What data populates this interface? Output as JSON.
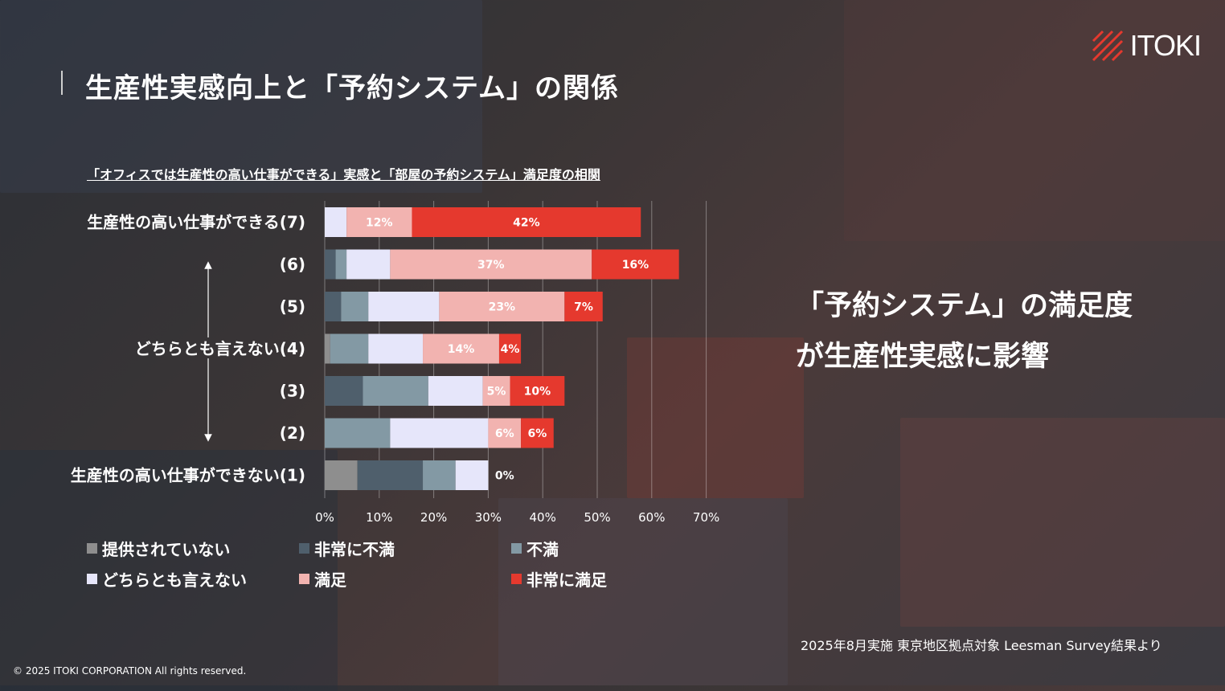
{
  "page": {
    "title": "生産性実感向上と「予約システム」の関係",
    "logo_text": "ITOKI",
    "headline_line1": "「予約システム」の満足度",
    "headline_line2": "が生産性実感に影響",
    "source": "2025年8月実施 東京地区拠点対象 Leesman Survey結果より",
    "copyright": "© 2025 ITOKI CORPORATION All rights reserved."
  },
  "legend": [
    {
      "label": "提供されていない",
      "color": "#8e8e8e"
    },
    {
      "label": "非常に不満",
      "color": "#4f5f6c"
    },
    {
      "label": "不満",
      "color": "#8399a4"
    },
    {
      "label": "どちらとも言えない",
      "color": "#e6e6fa"
    },
    {
      "label": "満足",
      "color": "#f2b3b0"
    },
    {
      "label": "非常に満足",
      "color": "#e5392e"
    }
  ],
  "chart_data": {
    "type": "bar",
    "orientation": "horizontal",
    "stacked": true,
    "title": "「オフィスでは生産性の高い仕事ができる」実感と「部屋の予約システム」満足度の相関",
    "categories": [
      "生産性の高い仕事ができる(7)",
      "(6)",
      "(5)",
      "どちらとも言えない(4)",
      "(3)",
      "(2)",
      "生産性の高い仕事ができない(1)"
    ],
    "series": [
      {
        "name": "提供されていない",
        "values": [
          0,
          0,
          0,
          1,
          0,
          0,
          6
        ]
      },
      {
        "name": "非常に不満",
        "values": [
          0,
          2,
          3,
          0,
          7,
          0,
          12
        ]
      },
      {
        "name": "不満",
        "values": [
          0,
          2,
          5,
          7,
          12,
          12,
          6
        ]
      },
      {
        "name": "どちらとも言えない",
        "values": [
          4,
          8,
          13,
          10,
          10,
          18,
          6
        ]
      },
      {
        "name": "満足",
        "values": [
          12,
          37,
          23,
          14,
          5,
          6,
          0
        ]
      },
      {
        "name": "非常に満足",
        "values": [
          42,
          16,
          7,
          4,
          10,
          6,
          0
        ]
      }
    ],
    "data_labels": [
      {
        "row": 0,
        "series": 4,
        "text": "12%"
      },
      {
        "row": 0,
        "series": 5,
        "text": "42%"
      },
      {
        "row": 1,
        "series": 4,
        "text": "37%"
      },
      {
        "row": 1,
        "series": 5,
        "text": "16%"
      },
      {
        "row": 2,
        "series": 4,
        "text": "23%"
      },
      {
        "row": 2,
        "series": 5,
        "text": "7%"
      },
      {
        "row": 3,
        "series": 4,
        "text": "14%"
      },
      {
        "row": 3,
        "series": 5,
        "text": "4%"
      },
      {
        "row": 4,
        "series": 4,
        "text": "5%"
      },
      {
        "row": 4,
        "series": 5,
        "text": "10%"
      },
      {
        "row": 5,
        "series": 4,
        "text": "6%"
      },
      {
        "row": 5,
        "series": 5,
        "text": "6%"
      },
      {
        "row": 6,
        "series": 5,
        "text": "0%"
      }
    ],
    "xticks": [
      "0%",
      "10%",
      "20%",
      "30%",
      "40%",
      "50%",
      "60%",
      "70%"
    ],
    "xlim": [
      0,
      70
    ],
    "xlabel": "",
    "ylabel": ""
  }
}
